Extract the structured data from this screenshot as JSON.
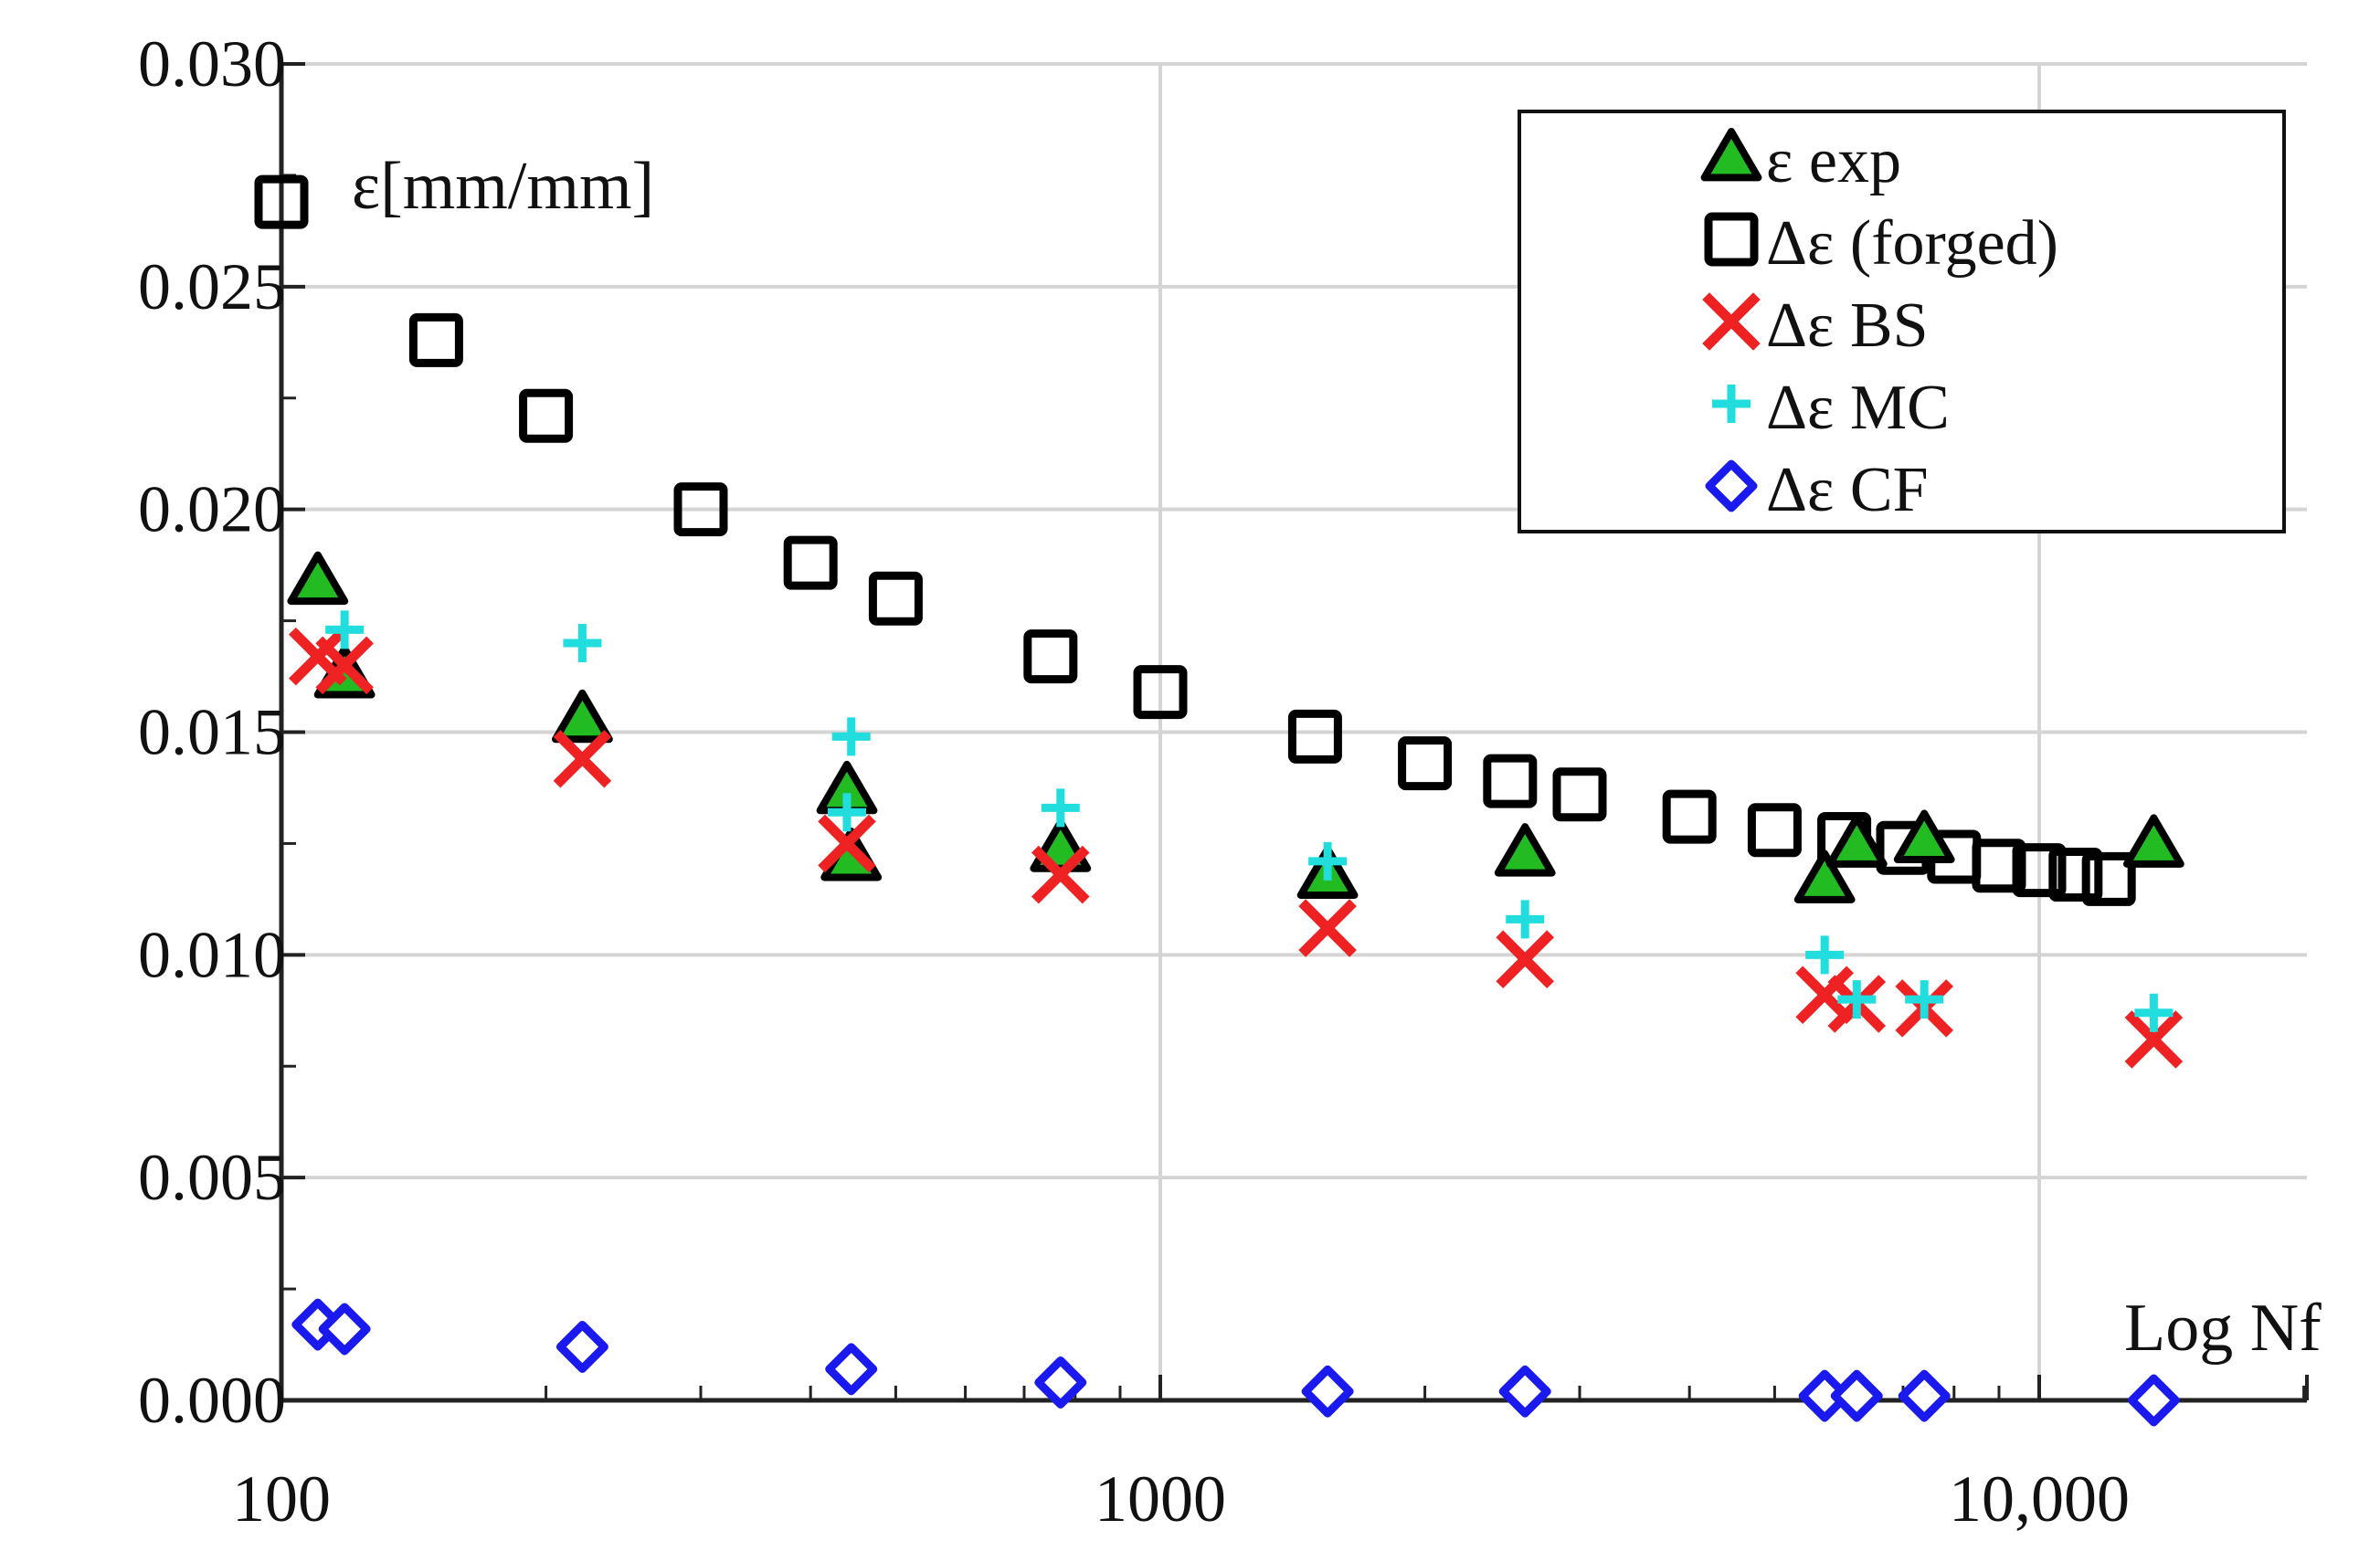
{
  "chart_data": {
    "type": "scatter",
    "title": "",
    "xlabel": "Log Nf",
    "ylabel": "ε[mm/mm]",
    "xscale": "log",
    "xlim": [
      100,
      20000
    ],
    "ylim": [
      0,
      0.03
    ],
    "grid": true,
    "legend_position": "top-right",
    "x_ticks": [
      {
        "value": 100,
        "label": "100"
      },
      {
        "value": 1000,
        "label": "1000"
      },
      {
        "value": 10000,
        "label": "10,000"
      }
    ],
    "y_ticks": [
      {
        "value": 0,
        "label": "0.000"
      },
      {
        "value": 0.005,
        "label": "0.005"
      },
      {
        "value": 0.01,
        "label": "0.010"
      },
      {
        "value": 0.015,
        "label": "0.015"
      },
      {
        "value": 0.02,
        "label": "0.020"
      },
      {
        "value": 0.025,
        "label": "0.025"
      },
      {
        "value": 0.03,
        "label": "0.030"
      }
    ],
    "series": [
      {
        "name": "ε exp",
        "marker": "triangle",
        "fill": "#22bb22",
        "stroke": "#000000",
        "points": [
          [
            110,
            0.0184
          ],
          [
            118,
            0.0163
          ],
          [
            220,
            0.0153
          ],
          [
            440,
            0.0137
          ],
          [
            445,
            0.0122
          ],
          [
            770,
            0.0124
          ],
          [
            1550,
            0.0118
          ],
          [
            2600,
            0.0123
          ],
          [
            5700,
            0.0117
          ],
          [
            6200,
            0.0125
          ],
          [
            7400,
            0.0126
          ],
          [
            13500,
            0.0125
          ]
        ]
      },
      {
        "name": "Δε (forged)",
        "marker": "square",
        "fill": "none",
        "stroke": "#000000",
        "points": [
          [
            100,
            0.0269
          ],
          [
            150,
            0.0238
          ],
          [
            200,
            0.0221
          ],
          [
            300,
            0.02
          ],
          [
            400,
            0.0188
          ],
          [
            500,
            0.018
          ],
          [
            750,
            0.0167
          ],
          [
            1000,
            0.0159
          ],
          [
            1500,
            0.0149
          ],
          [
            2000,
            0.0143
          ],
          [
            2500,
            0.0139
          ],
          [
            3000,
            0.0136
          ],
          [
            4000,
            0.0131
          ],
          [
            5000,
            0.0128
          ],
          [
            6000,
            0.0126
          ],
          [
            7000,
            0.0124
          ],
          [
            8000,
            0.0122
          ],
          [
            9000,
            0.012
          ],
          [
            10000,
            0.0119
          ],
          [
            11000,
            0.0118
          ],
          [
            12000,
            0.0117
          ]
        ]
      },
      {
        "name": "Δε BS",
        "marker": "x",
        "fill": "none",
        "stroke": "#ee2222",
        "points": [
          [
            110,
            0.0167
          ],
          [
            118,
            0.0165
          ],
          [
            220,
            0.0144
          ],
          [
            440,
            0.0125
          ],
          [
            770,
            0.0118
          ],
          [
            1550,
            0.0106
          ],
          [
            2600,
            0.0099
          ],
          [
            5700,
            0.0091
          ],
          [
            6200,
            0.0089
          ],
          [
            7400,
            0.0088
          ],
          [
            13500,
            0.0081
          ]
        ]
      },
      {
        "name": "Δε MC",
        "marker": "plus",
        "fill": "none",
        "stroke": "#22dddd",
        "points": [
          [
            118,
            0.0173
          ],
          [
            220,
            0.017
          ],
          [
            445,
            0.0149
          ],
          [
            440,
            0.0132
          ],
          [
            770,
            0.0133
          ],
          [
            1550,
            0.0121
          ],
          [
            2600,
            0.0108
          ],
          [
            5700,
            0.01
          ],
          [
            6200,
            0.009
          ],
          [
            7400,
            0.009
          ],
          [
            13500,
            0.0087
          ]
        ]
      },
      {
        "name": "Δε CF",
        "marker": "diamond",
        "fill": "#ffffff",
        "stroke": "#1a1aee",
        "points": [
          [
            110,
            0.0017
          ],
          [
            118,
            0.0016
          ],
          [
            220,
            0.0012
          ],
          [
            445,
            0.0007
          ],
          [
            770,
            0.0004
          ],
          [
            1550,
            0.0002
          ],
          [
            2600,
            0.0002
          ],
          [
            5700,
            0.0001
          ],
          [
            6200,
            0.0001
          ],
          [
            7400,
            0.0001
          ],
          [
            13500,
            0.0
          ]
        ]
      }
    ]
  }
}
